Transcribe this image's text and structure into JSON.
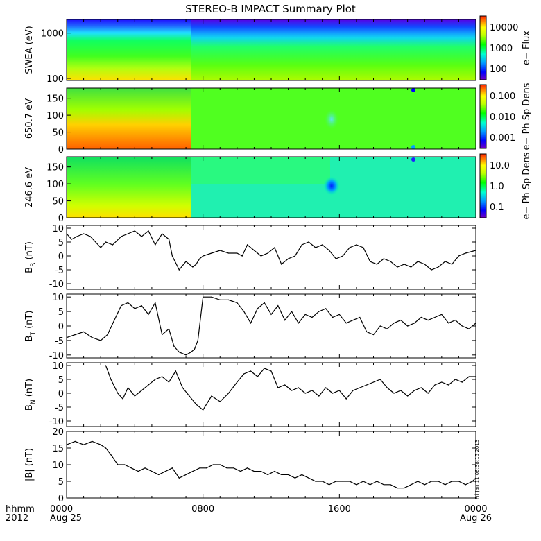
{
  "title": "STEREO-B IMPACT Summary Plot",
  "signature": "Fri Jan 11 08:38:15 2013",
  "x_axis": {
    "prefix_top": "hhmm",
    "prefix_bottom": "2012",
    "ticks": [
      {
        "hours": 0,
        "label": "0000",
        "sublabel": "Aug 25"
      },
      {
        "hours": 8,
        "label": "0800",
        "sublabel": ""
      },
      {
        "hours": 16,
        "label": "1600",
        "sublabel": ""
      },
      {
        "hours": 24,
        "label": "0000",
        "sublabel": "Aug 26"
      }
    ],
    "range_hours": [
      0,
      24
    ]
  },
  "colors": {
    "colorbar": [
      "#7000c0",
      "#0000ff",
      "#00a0ff",
      "#00ffd0",
      "#00ff00",
      "#c0ff00",
      "#ffff00",
      "#ff8000",
      "#ff2000"
    ]
  },
  "chart_data": [
    {
      "type": "heatmap",
      "name": "swea",
      "ylabel": "SWEA (eV)",
      "ylog": true,
      "ylim": [
        90,
        2000
      ],
      "yticks": [
        {
          "v": 1000,
          "label": "1000"
        },
        {
          "v": 100,
          "label": "100"
        }
      ],
      "colorbar_label": "e− Flux",
      "colorbar_ticks": [
        "10000",
        "1000",
        "100"
      ],
      "description_levels": "high flux (orange/yellow) at low energy, green mid energies, blue/purple near 1500-2000 eV"
    },
    {
      "type": "heatmap",
      "name": "pad650",
      "ylabel": "650.7 eV",
      "ylim": [
        0,
        180
      ],
      "yticks": [
        {
          "v": 0,
          "label": "0"
        },
        {
          "v": 50,
          "label": "50"
        },
        {
          "v": 100,
          "label": "100"
        },
        {
          "v": 150,
          "label": "150"
        }
      ],
      "colorbar_label": "e− Ph Sp Dens",
      "colorbar_ticks": [
        "0.100",
        "0.010",
        "0.001"
      ]
    },
    {
      "type": "heatmap",
      "name": "pad246",
      "ylabel": "246.6 eV",
      "ylim": [
        0,
        180
      ],
      "yticks": [
        {
          "v": 0,
          "label": "0"
        },
        {
          "v": 50,
          "label": "50"
        },
        {
          "v": 100,
          "label": "100"
        },
        {
          "v": 150,
          "label": "150"
        }
      ],
      "colorbar_label": "e− Ph Sp Dens",
      "colorbar_ticks": [
        "10.0",
        "1.0",
        "0.1"
      ]
    },
    {
      "type": "line",
      "name": "br",
      "ylabel": "B",
      "ylabel_sub": "R",
      "ylabel_unit": "(nT)",
      "ylim": [
        -12,
        11
      ],
      "yticks": [
        -10,
        -5,
        0,
        5,
        10
      ],
      "x": [
        0,
        0.3,
        0.6,
        1,
        1.4,
        2,
        2.3,
        2.7,
        3.2,
        3.6,
        4,
        4.4,
        4.8,
        5.2,
        5.6,
        6,
        6.2,
        6.6,
        7,
        7.4,
        7.6,
        7.8,
        8,
        8.5,
        9,
        9.5,
        10,
        10.3,
        10.6,
        11,
        11.4,
        11.8,
        12.2,
        12.6,
        13,
        13.4,
        13.8,
        14.2,
        14.6,
        15,
        15.4,
        15.8,
        16.2,
        16.6,
        17,
        17.4,
        17.8,
        18.2,
        18.6,
        19,
        19.4,
        19.8,
        20.2,
        20.6,
        21,
        21.4,
        21.8,
        22.2,
        22.6,
        23,
        23.4,
        24
      ],
      "y": [
        8,
        6,
        7,
        8,
        7,
        3,
        5,
        4,
        7,
        8,
        9,
        7,
        9,
        4,
        8,
        6,
        0,
        -5,
        -2,
        -4,
        -3,
        -1,
        0,
        1,
        2,
        1,
        1,
        0,
        4,
        2,
        0,
        1,
        3,
        -3,
        -1,
        0,
        4,
        5,
        3,
        4,
        2,
        -1,
        0,
        3,
        4,
        3,
        -2,
        -3,
        -1,
        -2,
        -4,
        -3,
        -4,
        -2,
        -3,
        -5,
        -4,
        -2,
        -3,
        0,
        1,
        2
      ]
    },
    {
      "type": "line",
      "name": "bt",
      "ylabel": "B",
      "ylabel_sub": "T",
      "ylabel_unit": "(nT)",
      "ylim": [
        -11,
        11
      ],
      "yticks": [
        -10,
        -5,
        0,
        5,
        10
      ],
      "x": [
        0,
        0.5,
        1,
        1.5,
        2,
        2.4,
        2.8,
        3.2,
        3.6,
        4,
        4.4,
        4.8,
        5.2,
        5.6,
        6,
        6.3,
        6.6,
        7,
        7.3,
        7.5,
        7.7,
        8,
        8.5,
        9,
        9.5,
        10,
        10.4,
        10.8,
        11.2,
        11.6,
        12,
        12.4,
        12.8,
        13.2,
        13.6,
        14,
        14.4,
        14.8,
        15.2,
        15.6,
        16,
        16.4,
        16.8,
        17.2,
        17.6,
        18,
        18.4,
        18.8,
        19.2,
        19.6,
        20,
        20.4,
        20.8,
        21.2,
        21.6,
        22,
        22.4,
        22.8,
        23.2,
        23.6,
        24
      ],
      "y": [
        -4,
        -3,
        -2,
        -4,
        -5,
        -3,
        2,
        7,
        8,
        6,
        7,
        4,
        8,
        -3,
        -1,
        -7,
        -9,
        -10,
        -9,
        -8,
        -5,
        10,
        10,
        9,
        9,
        8,
        5,
        1,
        6,
        8,
        4,
        7,
        2,
        5,
        1,
        4,
        3,
        5,
        6,
        3,
        4,
        1,
        2,
        3,
        -2,
        -3,
        0,
        -1,
        1,
        2,
        0,
        1,
        3,
        2,
        3,
        4,
        1,
        2,
        0,
        -1,
        1
      ]
    },
    {
      "type": "line",
      "name": "bn",
      "ylabel": "B",
      "ylabel_sub": "N",
      "ylabel_unit": "(nT)",
      "ylim": [
        -12,
        11
      ],
      "yticks": [
        -10,
        -5,
        0,
        5,
        10
      ],
      "x": [
        2.3,
        2.6,
        3,
        3.3,
        3.6,
        4,
        4.4,
        4.8,
        5.2,
        5.6,
        6,
        6.4,
        6.8,
        7.2,
        7.6,
        8,
        8.5,
        9,
        9.5,
        10,
        10.4,
        10.8,
        11.2,
        11.6,
        12,
        12.4,
        12.8,
        13.2,
        13.6,
        14,
        14.4,
        14.8,
        15.2,
        15.6,
        16,
        16.4,
        16.8,
        17.2,
        17.6,
        18,
        18.4,
        18.8,
        19.2,
        19.6,
        20,
        20.4,
        20.8,
        21.2,
        21.6,
        22,
        22.4,
        22.8,
        23.2,
        23.6,
        24
      ],
      "y": [
        10,
        5,
        0,
        -2,
        2,
        -1,
        1,
        3,
        5,
        6,
        4,
        8,
        2,
        -1,
        -4,
        -6,
        -1,
        -3,
        0,
        4,
        7,
        8,
        6,
        9,
        8,
        2,
        3,
        1,
        2,
        0,
        1,
        -1,
        2,
        0,
        1,
        -2,
        1,
        2,
        3,
        4,
        5,
        2,
        0,
        1,
        -1,
        1,
        2,
        0,
        3,
        4,
        3,
        5,
        4,
        6,
        6
      ]
    },
    {
      "type": "line",
      "name": "bmag",
      "ylabel": "|B| (nT)",
      "ylim": [
        0,
        20
      ],
      "yticks": [
        0,
        5,
        10,
        15,
        20
      ],
      "x": [
        0,
        0.5,
        1,
        1.5,
        2,
        2.3,
        2.6,
        3,
        3.4,
        3.8,
        4.2,
        4.6,
        5,
        5.4,
        5.8,
        6.2,
        6.6,
        7,
        7.4,
        7.8,
        8.2,
        8.6,
        9,
        9.4,
        9.8,
        10.2,
        10.6,
        11,
        11.4,
        11.8,
        12.2,
        12.6,
        13,
        13.4,
        13.8,
        14.2,
        14.6,
        15,
        15.4,
        15.8,
        16.2,
        16.6,
        17,
        17.4,
        17.8,
        18.2,
        18.6,
        19,
        19.4,
        19.8,
        20.2,
        20.6,
        21,
        21.4,
        21.8,
        22.2,
        22.6,
        23,
        23.4,
        23.8,
        24
      ],
      "y": [
        16,
        17,
        16,
        17,
        16,
        15,
        13,
        10,
        10,
        9,
        8,
        9,
        8,
        7,
        8,
        9,
        6,
        7,
        8,
        9,
        9,
        10,
        10,
        9,
        9,
        8,
        9,
        8,
        8,
        7,
        8,
        7,
        7,
        6,
        7,
        6,
        5,
        5,
        4,
        5,
        5,
        5,
        4,
        5,
        4,
        5,
        4,
        4,
        3,
        3,
        4,
        5,
        4,
        5,
        5,
        4,
        5,
        5,
        4,
        5,
        6
      ]
    }
  ]
}
